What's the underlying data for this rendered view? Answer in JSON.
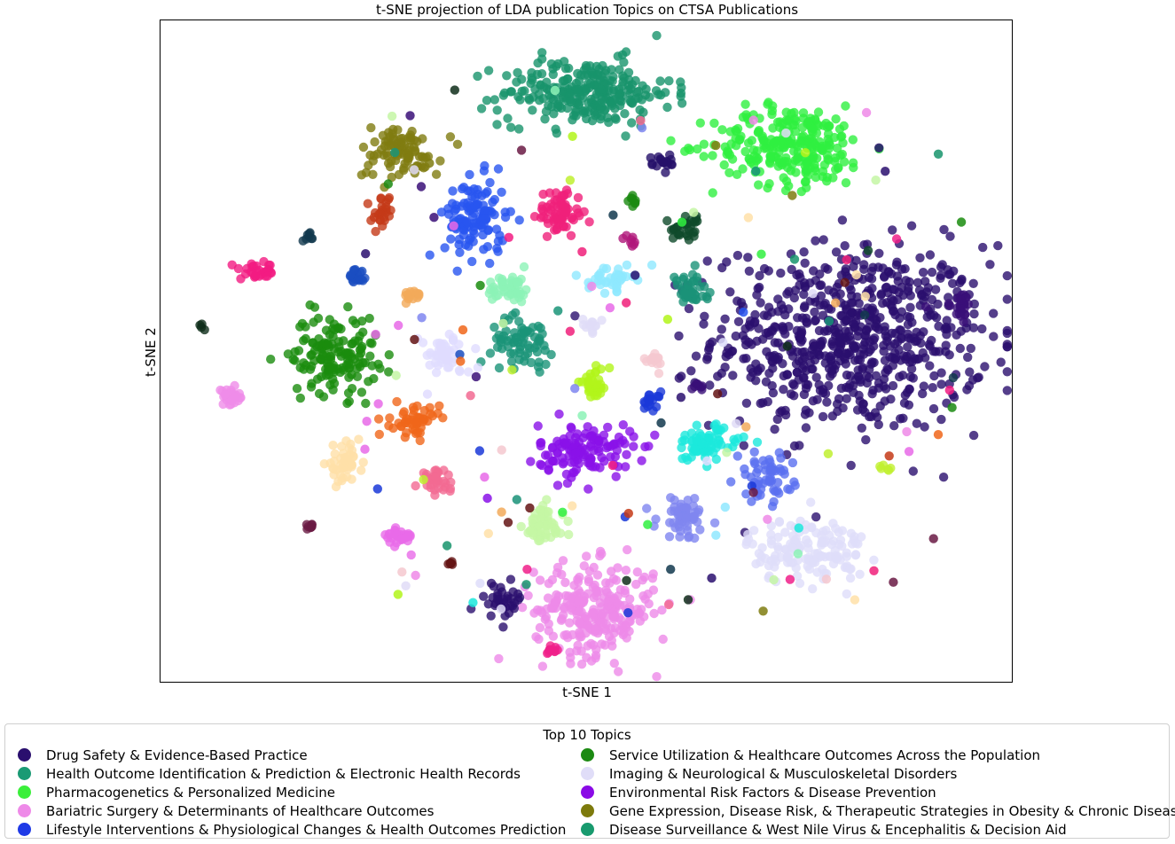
{
  "chart_data": {
    "type": "scatter",
    "title": "t-SNE projection of LDA publication Topics on CTSA Publications",
    "xlabel": "t-SNE 1",
    "ylabel": "t-SNE 2",
    "xlim": [
      0,
      100
    ],
    "ylim": [
      0,
      100
    ],
    "ticks": false,
    "grid": false,
    "legend": {
      "title": "Top 10 Topics",
      "placement": "bottom",
      "columns": 2,
      "entries": [
        {
          "label": "Drug Safety & Evidence-Based Practice",
          "color": "#2a0f6e"
        },
        {
          "label": "Health Outcome Identification & Prediction & Electronic Health Records",
          "color": "#1a9a74"
        },
        {
          "label": "Pharmacogenetics & Personalized Medicine",
          "color": "#3aef3a"
        },
        {
          "label": "Bariatric Surgery & Determinants of Healthcare Outcomes",
          "color": "#ee8ae8"
        },
        {
          "label": "Lifestyle Interventions & Physiological Changes & Health Outcomes Prediction",
          "color": "#1f3ae6"
        },
        {
          "label": "Service Utilization & Healthcare Outcomes Across the Population",
          "color": "#1c8a12"
        },
        {
          "label": "Imaging & Neurological & Musculoskeletal Disorders",
          "color": "#e0ddf8"
        },
        {
          "label": "Environmental Risk Factors & Disease Prevention",
          "color": "#8a0ae6"
        },
        {
          "label": "Gene Expression, Disease Risk, & Therapeutic Strategies in Obesity & Chronic Disease",
          "color": "#7d7a0c"
        },
        {
          "label": "Disease Surveillance & West Nile Virus & Encephalitis & Decision Aid",
          "color": "#189a6e"
        }
      ]
    },
    "clusters": [
      {
        "color": "#2a0f6e",
        "x": 81,
        "y": 52,
        "sx": 8,
        "sy": 7,
        "n": 700
      },
      {
        "color": "#18946c",
        "x": 50,
        "y": 89,
        "sx": 5,
        "sy": 2.5,
        "n": 260
      },
      {
        "color": "#30f040",
        "x": 74,
        "y": 81,
        "sx": 4.5,
        "sy": 3,
        "n": 260
      },
      {
        "color": "#ee8ae8",
        "x": 51,
        "y": 11,
        "sx": 3.5,
        "sy": 3.5,
        "n": 260
      },
      {
        "color": "#2855f0",
        "x": 37,
        "y": 70,
        "sx": 1.8,
        "sy": 3,
        "n": 120
      },
      {
        "color": "#1a8c0e",
        "x": 20.5,
        "y": 49.5,
        "sx": 2.5,
        "sy": 3,
        "n": 150
      },
      {
        "color": "#deddfa",
        "x": 76,
        "y": 20,
        "sx": 3.5,
        "sy": 2.5,
        "n": 140
      },
      {
        "color": "#8a12e8",
        "x": 50,
        "y": 35,
        "sx": 2.8,
        "sy": 2,
        "n": 130
      },
      {
        "color": "#7f7c10",
        "x": 28,
        "y": 80,
        "sx": 2.5,
        "sy": 2,
        "n": 90
      },
      {
        "color": "#1a9478",
        "x": 42.5,
        "y": 51.5,
        "sx": 1.8,
        "sy": 1.8,
        "n": 70
      },
      {
        "color": "#f0207a",
        "x": 47,
        "y": 71,
        "sx": 1.3,
        "sy": 1.8,
        "n": 70
      },
      {
        "color": "#8cf2b6",
        "x": 41,
        "y": 59.5,
        "sx": 1.3,
        "sy": 1.1,
        "n": 45
      },
      {
        "color": "#8fe8ff",
        "x": 53,
        "y": 61,
        "sx": 1.3,
        "sy": 0.9,
        "n": 40
      },
      {
        "color": "#1a9278",
        "x": 62,
        "y": 59,
        "sx": 1.1,
        "sy": 1.4,
        "n": 40
      },
      {
        "color": "#e0dcff",
        "x": 33.5,
        "y": 49.5,
        "sx": 1.5,
        "sy": 1.5,
        "n": 55
      },
      {
        "color": "#f0661a",
        "x": 30,
        "y": 39.5,
        "sx": 1.4,
        "sy": 1.2,
        "n": 50
      },
      {
        "color": "#1be8dc",
        "x": 64,
        "y": 36,
        "sx": 2,
        "sy": 1.4,
        "n": 70
      },
      {
        "color": "#5a6ff0",
        "x": 71,
        "y": 31,
        "sx": 1.6,
        "sy": 1.8,
        "n": 60
      },
      {
        "color": "#7f86f0",
        "x": 61.5,
        "y": 25,
        "sx": 1.6,
        "sy": 1.6,
        "n": 60
      },
      {
        "color": "#c4f6a4",
        "x": 45,
        "y": 23.5,
        "sx": 1.2,
        "sy": 1.6,
        "n": 55
      },
      {
        "color": "#b2f51a",
        "x": 51,
        "y": 45,
        "sx": 0.9,
        "sy": 1.1,
        "n": 35
      },
      {
        "color": "#1a38d8",
        "x": 57.5,
        "y": 42.5,
        "sx": 0.6,
        "sy": 0.7,
        "n": 18
      },
      {
        "color": "#f5c8cf",
        "x": 58,
        "y": 48.5,
        "sx": 0.6,
        "sy": 0.6,
        "n": 15
      },
      {
        "color": "#e0dcf7",
        "x": 50.5,
        "y": 54,
        "sx": 0.6,
        "sy": 0.6,
        "n": 12
      },
      {
        "color": "#ffe0a8",
        "x": 21.5,
        "y": 33,
        "sx": 1,
        "sy": 1.3,
        "n": 45
      },
      {
        "color": "#f26a92",
        "x": 32.5,
        "y": 30.5,
        "sx": 1,
        "sy": 0.8,
        "n": 35
      },
      {
        "color": "#e86ae8",
        "x": 28,
        "y": 22,
        "sx": 0.9,
        "sy": 0.8,
        "n": 30
      },
      {
        "color": "#f21c82",
        "x": 11.5,
        "y": 62,
        "sx": 1,
        "sy": 0.6,
        "n": 30
      },
      {
        "color": "#1a4ec0",
        "x": 23,
        "y": 61,
        "sx": 0.7,
        "sy": 0.6,
        "n": 20
      },
      {
        "color": "#ef8ce8",
        "x": 8.5,
        "y": 43,
        "sx": 0.8,
        "sy": 0.6,
        "n": 25
      },
      {
        "color": "#c43a18",
        "x": 26,
        "y": 71,
        "sx": 0.6,
        "sy": 1.3,
        "n": 25
      },
      {
        "color": "#12384e",
        "x": 17.5,
        "y": 67,
        "sx": 0.3,
        "sy": 0.4,
        "n": 8
      },
      {
        "color": "#f2aa5a",
        "x": 29.5,
        "y": 58.5,
        "sx": 0.6,
        "sy": 0.6,
        "n": 15
      },
      {
        "color": "#26106a",
        "x": 59,
        "y": 78.5,
        "sx": 0.8,
        "sy": 0.6,
        "n": 18
      },
      {
        "color": "#0f4a2a",
        "x": 62,
        "y": 68.5,
        "sx": 1,
        "sy": 1,
        "n": 30
      },
      {
        "color": "#1a8a10",
        "x": 55.5,
        "y": 72.5,
        "sx": 0.4,
        "sy": 0.4,
        "n": 8
      },
      {
        "color": "#b0187a",
        "x": 55.5,
        "y": 66.5,
        "sx": 0.4,
        "sy": 0.4,
        "n": 8
      },
      {
        "color": "#2a0f6e",
        "x": 40,
        "y": 12.5,
        "sx": 1.3,
        "sy": 1.2,
        "n": 35
      },
      {
        "color": "#3a0f78",
        "x": 94,
        "y": 57,
        "sx": 0.6,
        "sy": 1,
        "n": 25
      },
      {
        "color": "#3a0f78",
        "x": 63,
        "y": 44.5,
        "sx": 0.4,
        "sy": 0.4,
        "n": 8
      },
      {
        "color": "#6a1a44",
        "x": 17.5,
        "y": 23.5,
        "sx": 0.4,
        "sy": 0.4,
        "n": 8
      },
      {
        "color": "#f0208a",
        "x": 46,
        "y": 5,
        "sx": 0.6,
        "sy": 0.3,
        "n": 10
      },
      {
        "color": "#641414",
        "x": 34,
        "y": 18,
        "sx": 0.3,
        "sy": 0.2,
        "n": 6
      },
      {
        "color": "#0f2e1a",
        "x": 5,
        "y": 53.5,
        "sx": 0.2,
        "sy": 0.2,
        "n": 4
      },
      {
        "color": "#c0f030",
        "x": 85,
        "y": 32,
        "sx": 0.3,
        "sy": 0.4,
        "n": 6
      }
    ]
  }
}
